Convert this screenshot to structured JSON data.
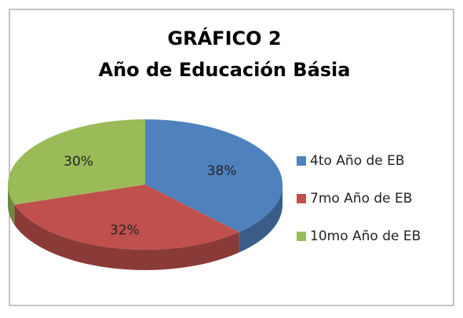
{
  "chart_data": {
    "type": "pie",
    "title": [
      "GRÁFICO 2",
      "Año de Educación Básia"
    ],
    "categories": [
      "4to Año de EB",
      "7mo Año de EB",
      "10mo Año de EB"
    ],
    "values": [
      38,
      32,
      30
    ],
    "value_labels": [
      "38%",
      "32%",
      "30%"
    ],
    "colors": [
      "#4f81bd",
      "#c0504d",
      "#9bbb59"
    ],
    "legend": "right"
  }
}
